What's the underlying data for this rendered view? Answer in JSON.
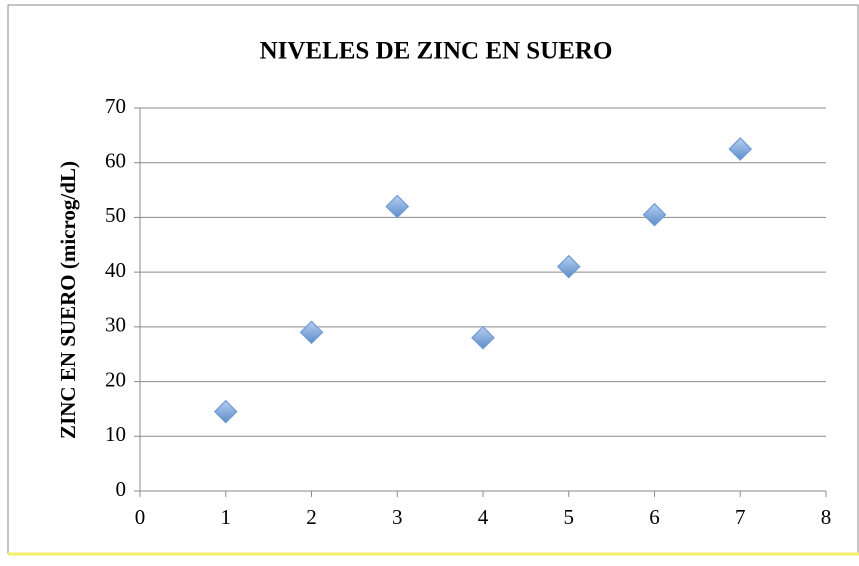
{
  "chart_data": {
    "type": "scatter",
    "title": "NIVELES DE ZINC EN SUERO",
    "y_label": "ZINC EN SUERO (microg/dL)",
    "x": [
      1,
      2,
      3,
      4,
      5,
      6,
      7
    ],
    "values": [
      14.5,
      29,
      52,
      28,
      41,
      50.5,
      62.5
    ],
    "color": "#6f9bd4",
    "xlim": [
      0,
      8
    ],
    "xticks": [
      0,
      1,
      2,
      3,
      4,
      5,
      6,
      7,
      8
    ],
    "ylim": [
      0,
      70
    ],
    "yticks": [
      0,
      10,
      20,
      30,
      40,
      50,
      60,
      70
    ],
    "grid": true
  }
}
